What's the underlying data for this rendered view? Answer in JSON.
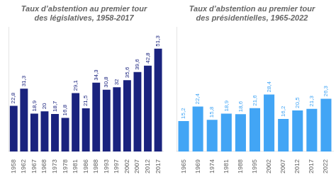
{
  "chart_data": [
    {
      "type": "bar",
      "title": "Taux d’abstention au premier tour\ndes législatives, 1958-2017",
      "categories": [
        "1958",
        "1962",
        "1967",
        "1968",
        "1973",
        "1978",
        "1981",
        "1986",
        "1988",
        "1993",
        "1997",
        "2002",
        "2007",
        "2012",
        "2017"
      ],
      "values": [
        22.8,
        31.3,
        18.9,
        20.0,
        18.7,
        16.8,
        29.1,
        21.5,
        34.3,
        30.8,
        32.0,
        35.6,
        39.6,
        42.8,
        51.3
      ],
      "value_labels": [
        "22,8",
        "31,3",
        "18,9",
        "20",
        "18,7",
        "16,8",
        "29,1",
        "21,5",
        "34,3",
        "30,8",
        "32",
        "35,6",
        "39,6",
        "42,8",
        "51,3"
      ],
      "color": "#1a237e",
      "ylim": [
        0,
        62
      ],
      "grid": false,
      "data_labels": true,
      "tick_labels": "x"
    },
    {
      "type": "bar",
      "title": "Taux d’abstention au premier tour\ndes présidentielles, 1965-2022",
      "categories": [
        "1965",
        "1969",
        "1974",
        "1981",
        "1988",
        "1995",
        "2002",
        "2007",
        "2012",
        "2017",
        "2022"
      ],
      "values": [
        15.2,
        22.4,
        15.8,
        18.9,
        18.6,
        21.6,
        28.4,
        16.2,
        20.5,
        21.3,
        26.3
      ],
      "value_labels": [
        "15,2",
        "22,4",
        "15,8",
        "18,9",
        "18,6",
        "21,6",
        "28,4",
        "16,2",
        "20,5",
        "21,3",
        "26,3"
      ],
      "color": "#42a5f5",
      "ylim": [
        0,
        62
      ],
      "grid": false,
      "data_labels": true,
      "tick_labels": "x"
    }
  ]
}
